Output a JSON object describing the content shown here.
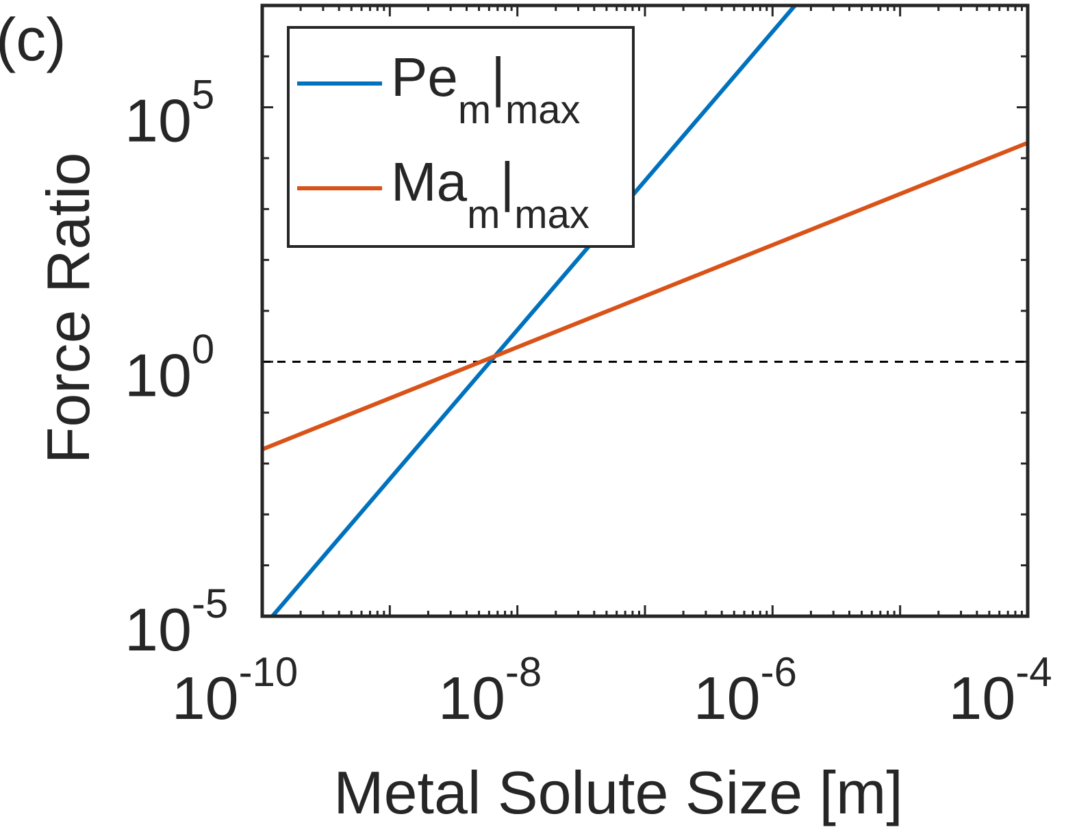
{
  "panel_label": "(c)",
  "chart_data": {
    "type": "line",
    "xscale": "log",
    "yscale": "log",
    "xlabel": "Metal Solute Size [m]",
    "ylabel": "Force Ratio",
    "xlim": [
      1e-10,
      0.0001
    ],
    "ylim": [
      1e-05,
      10000000.0
    ],
    "xticks": [
      {
        "exp": -10,
        "base": "10",
        "sup": "-10"
      },
      {
        "exp": -8,
        "base": "10",
        "sup": "-8"
      },
      {
        "exp": -6,
        "base": "10",
        "sup": "-6"
      },
      {
        "exp": -4,
        "base": "10",
        "sup": "-4"
      }
    ],
    "yticks": [
      {
        "exp": -5,
        "base": "10",
        "sup": "-5"
      },
      {
        "exp": 0,
        "base": "10",
        "sup": "0"
      },
      {
        "exp": 5,
        "base": "10",
        "sup": "5"
      }
    ],
    "reference_line": {
      "y": 1,
      "style": "dashed"
    },
    "series": [
      {
        "name": "Pe_m|max",
        "label_main": "Pe",
        "label_sub1": "m",
        "label_bar": "|",
        "label_sub2": "max",
        "color": "#0072BD",
        "x": [
          1.2e-10,
          1.5e-06
        ],
        "y": [
          1e-05,
          10000000.0
        ]
      },
      {
        "name": "Ma_m|max",
        "label_main": "Ma",
        "label_sub1": "m",
        "label_bar": "|",
        "label_sub2": "max",
        "color": "#D95319",
        "x": [
          1e-10,
          0.0001
        ],
        "y": [
          0.019,
          20000
        ]
      }
    ],
    "legend": "top-left",
    "grid": false
  }
}
